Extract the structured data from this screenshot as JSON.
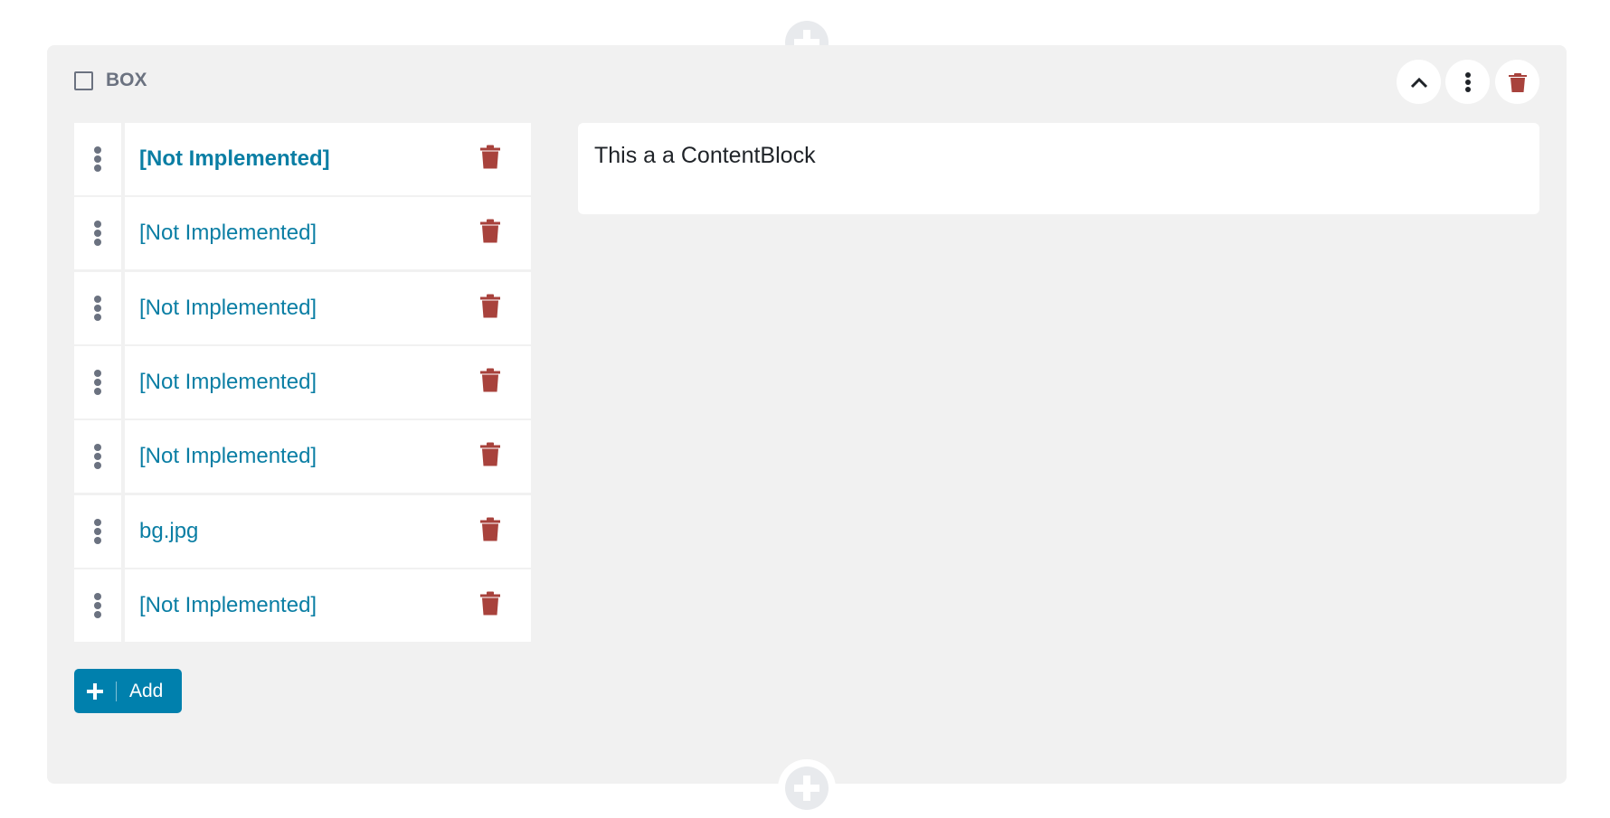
{
  "box": {
    "title": "BOX",
    "header_buttons": [
      {
        "name": "collapse-button",
        "icon": "chevron-up-icon"
      },
      {
        "name": "more-options-button",
        "icon": "vertical-dots-icon"
      },
      {
        "name": "delete-box-button",
        "icon": "trash-icon"
      }
    ]
  },
  "list": {
    "items": [
      {
        "label": "[Not Implemented]",
        "active": true
      },
      {
        "label": "[Not Implemented]",
        "active": false
      },
      {
        "label": "[Not Implemented]",
        "active": false
      },
      {
        "label": "[Not Implemented]",
        "active": false
      },
      {
        "label": "[Not Implemented]",
        "active": false
      },
      {
        "label": "bg.jpg",
        "active": false
      },
      {
        "label": "[Not Implemented]",
        "active": false
      }
    ],
    "add_label": "Add"
  },
  "content_block": {
    "text": "This a a ContentBlock"
  },
  "colors": {
    "accent": "#0080ad",
    "link": "#0a7ea4",
    "danger": "#a8423c",
    "panel_bg": "#f1f1f1",
    "muted": "#6b7280"
  }
}
